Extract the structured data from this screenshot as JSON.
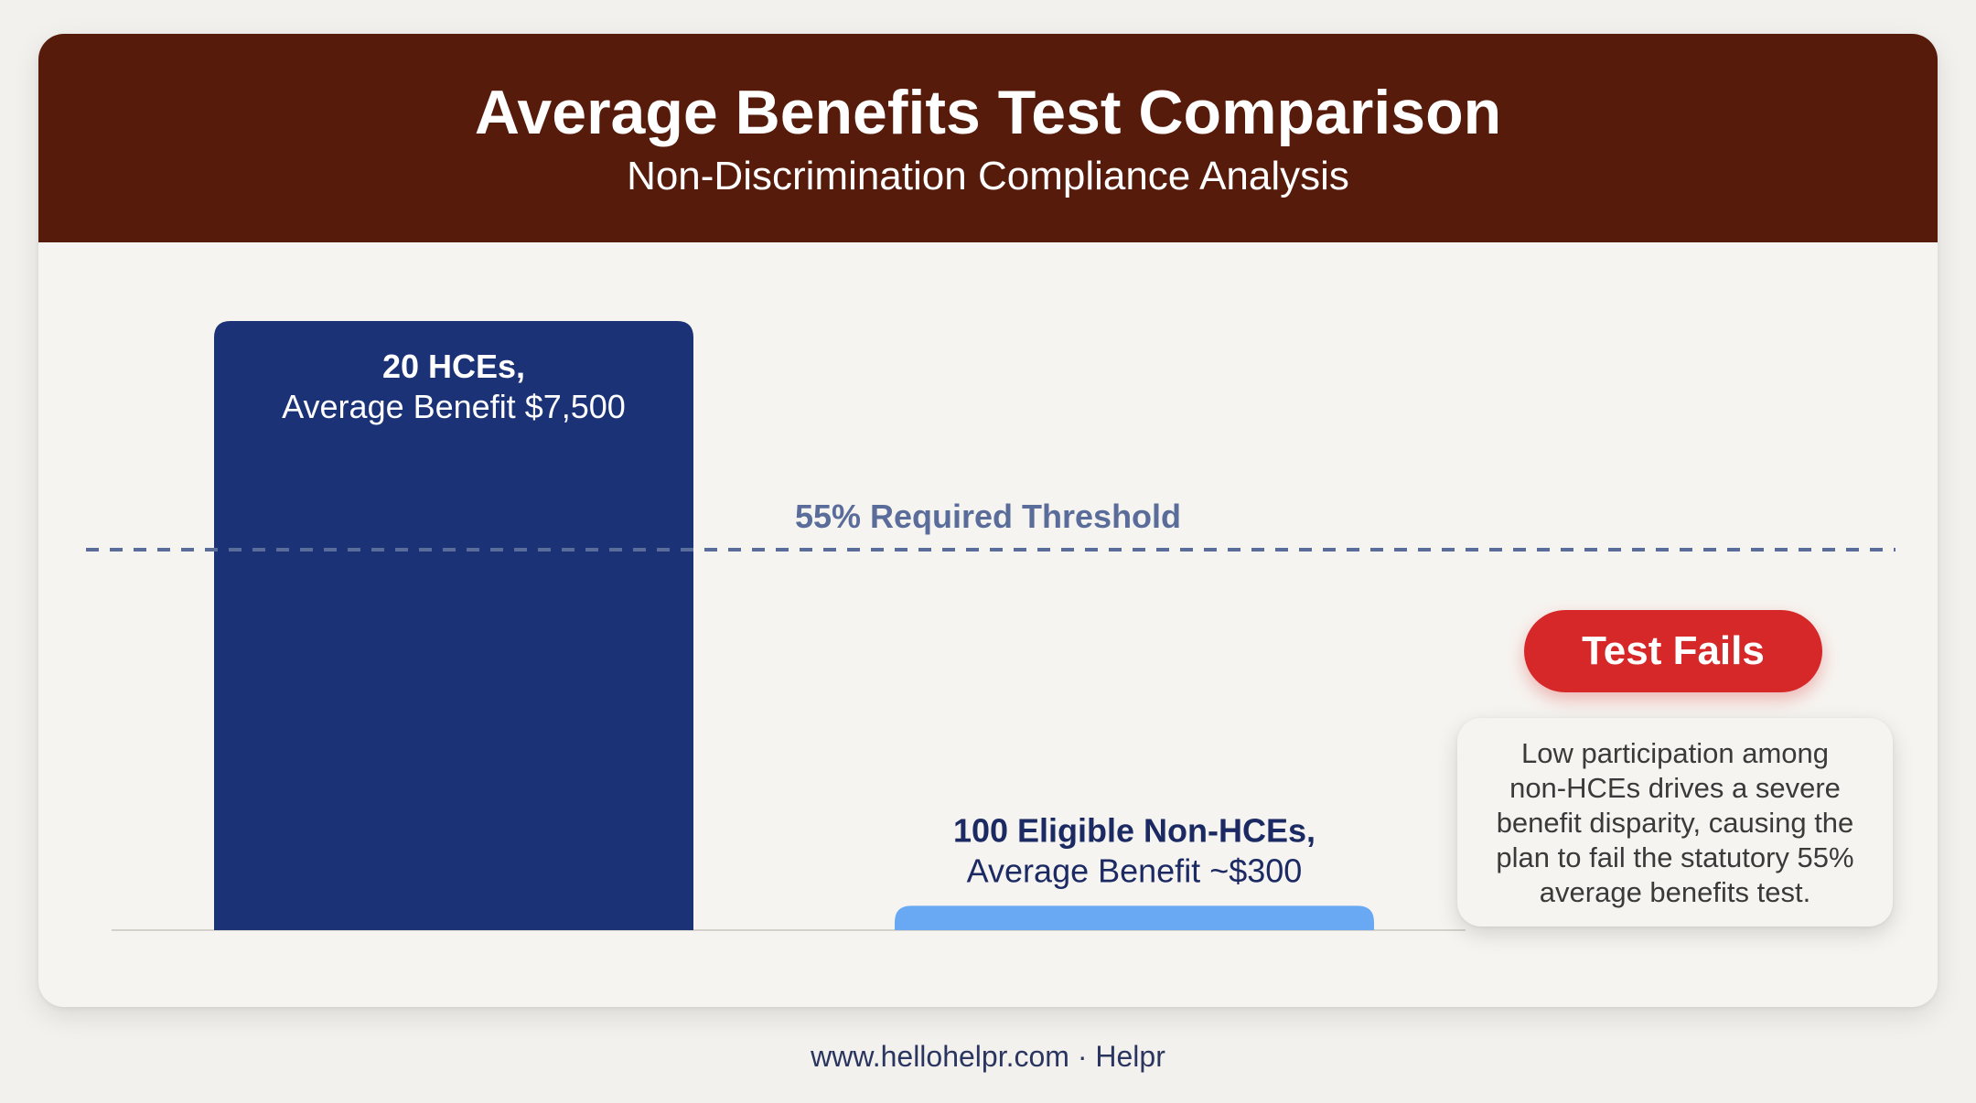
{
  "header": {
    "title": "Average Benefits Test Comparison",
    "subtitle": "Non-Discrimination Compliance Analysis"
  },
  "chart_data": {
    "type": "bar",
    "categories": [
      "20 HCEs,",
      "100 Eligible Non-HCEs,"
    ],
    "values": [
      7500,
      300
    ],
    "data_labels": [
      "Average Benefit $7,500",
      "Average Benefit ~$300"
    ],
    "bar_colors": [
      "#1b3276",
      "#69a9f4"
    ],
    "reference_line": {
      "label": "55% Required Threshold",
      "value": 4125,
      "color": "#5a6c9a",
      "style": "dashed"
    },
    "ylim": [
      0,
      7500
    ],
    "grid": false,
    "legend": "none"
  },
  "status": {
    "badge": "Test Fails",
    "badge_color": "#d62828",
    "explanation_lines": [
      "Low participation among",
      "non-HCEs drives a severe",
      "benefit disparity, causing the",
      "plan to fail the statutory 55%",
      "average benefits test."
    ]
  },
  "footer": {
    "text": "www.hellohelpr.com · Helpr"
  }
}
